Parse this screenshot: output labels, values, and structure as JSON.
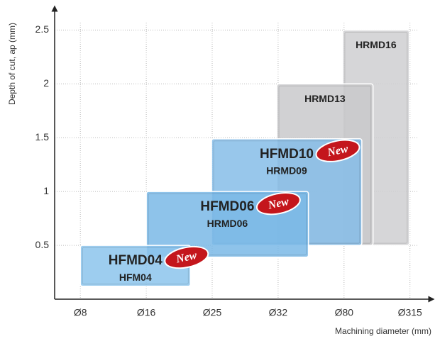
{
  "chart_data": {
    "type": "range-box",
    "y_label": "Depth of cut, ap (mm)",
    "x_label": "Machining diameter (mm)",
    "xlim": [
      -0.39,
      5.24
    ],
    "xticks": [
      {
        "value": 0,
        "label": "Ø8"
      },
      {
        "value": 1,
        "label": "Ø16"
      },
      {
        "value": 2,
        "label": "Ø25"
      },
      {
        "value": 3,
        "label": "Ø32"
      },
      {
        "value": 4,
        "label": "Ø80"
      },
      {
        "value": 5,
        "label": "Ø315"
      }
    ],
    "ylim": [
      0,
      2.7
    ],
    "yticks": [
      0.5,
      1.0,
      1.5,
      2.0,
      2.5
    ],
    "grid": true,
    "series": [
      {
        "name": "HRMD16",
        "color": "#cfcfd1",
        "x": [
          3.98,
          4.99
        ],
        "y": [
          0.5,
          2.5
        ]
      },
      {
        "name": "HRMD13",
        "color": "#c9c9cb",
        "x": [
          2.98,
          4.44
        ],
        "y": [
          0.5,
          2.0
        ]
      },
      {
        "name": "HFMD10",
        "sub": "HRMD09",
        "badge": "New",
        "color": "#86bde8",
        "x": [
          1.99,
          4.27
        ],
        "y": [
          0.5,
          1.49
        ]
      },
      {
        "name": "HFMD06",
        "sub": "HRMD06",
        "badge": "New",
        "color": "#7ab8e6",
        "x": [
          1.0,
          3.46
        ],
        "y": [
          0.39,
          1.0
        ]
      },
      {
        "name": "HFMD04",
        "sub": "HFM04",
        "badge": "New",
        "color": "#8cc4ec",
        "x": [
          0,
          1.67
        ],
        "y": [
          0.12,
          0.5
        ]
      }
    ]
  }
}
